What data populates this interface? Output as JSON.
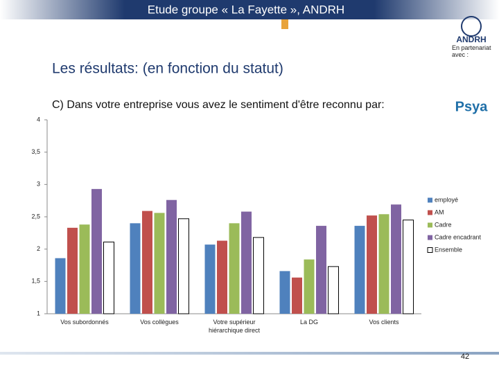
{
  "header": {
    "title": "Etude groupe « La Fayette », ANDRH",
    "subtitle": "Les résultats: (en fonction du statut)",
    "partner": "En partenariat avec :",
    "logo1": "ANDRH",
    "logo2": "Psya"
  },
  "chart_data": {
    "type": "bar",
    "title": "C) Dans votre entreprise vous avez le sentiment d'être reconnu par:",
    "categories": [
      "Vos subordonnés",
      "Vos collègues",
      "Votre supérieur hiérarchique direct",
      "La DG",
      "Vos clients"
    ],
    "series": [
      {
        "name": "employé",
        "color": "#4F81BD",
        "values": [
          1.86,
          2.4,
          2.07,
          1.66,
          2.36
        ]
      },
      {
        "name": "AM",
        "color": "#C0504D",
        "values": [
          2.33,
          2.59,
          2.13,
          1.56,
          2.52
        ]
      },
      {
        "name": "Cadre",
        "color": "#9BBB59",
        "values": [
          2.38,
          2.56,
          2.4,
          1.84,
          2.54
        ]
      },
      {
        "name": "Cadre encadrant",
        "color": "#8064A2",
        "values": [
          2.93,
          2.76,
          2.58,
          2.36,
          2.69
        ]
      },
      {
        "name": "Ensemble",
        "color": "#FFFFFF",
        "values": [
          2.11,
          2.47,
          2.18,
          1.73,
          2.45
        ]
      }
    ],
    "ylim": [
      1,
      4
    ],
    "yticks": [
      1,
      {
        "value": 1.5,
        "label": "1,5"
      },
      2,
      {
        "value": 2.5,
        "label": "2,5"
      },
      3,
      {
        "value": 3.5,
        "label": "3,5"
      },
      4
    ],
    "grid": false,
    "legend": "right"
  },
  "page_number": "42"
}
